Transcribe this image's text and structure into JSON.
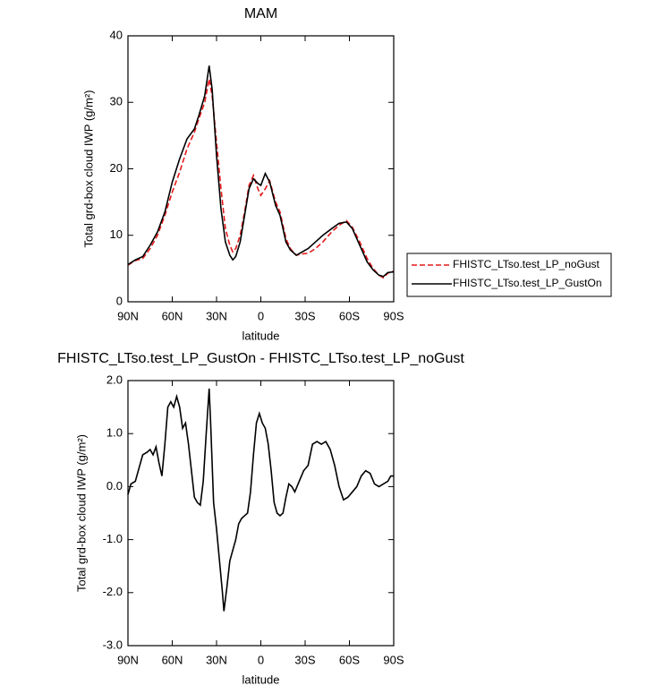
{
  "chart_data": [
    {
      "type": "line",
      "title": "MAM",
      "x_label": "latitude",
      "y_label": "Total grd-box cloud IWP (g/m²)",
      "xlim": [
        90,
        -90
      ],
      "xticks": [
        {
          "value": 90,
          "label": "90N"
        },
        {
          "value": 60,
          "label": "60N"
        },
        {
          "value": 30,
          "label": "30N"
        },
        0,
        {
          "value": -30,
          "label": "30S"
        },
        {
          "value": -60,
          "label": "60S"
        },
        {
          "value": -90,
          "label": "90S"
        }
      ],
      "ylim": [
        0,
        40
      ],
      "yticks": [
        0,
        10,
        20,
        30,
        40
      ],
      "legend": "right",
      "x": [
        90,
        85,
        80,
        75,
        70,
        65,
        60,
        55,
        50,
        45,
        42,
        38,
        35,
        33,
        30,
        27,
        24,
        21,
        19,
        17,
        14,
        11,
        8,
        5,
        2,
        0,
        -3,
        -6,
        -10,
        -13,
        -17,
        -20,
        -24,
        -28,
        -32,
        -37,
        -42,
        -48,
        -53,
        -58,
        -62,
        -67,
        -72,
        -76,
        -80,
        -83,
        -86,
        -90
      ],
      "series": [
        {
          "name": "FHISTC_LTso.test_LP_noGust",
          "color": "#e41a1c",
          "line_style": "dashed",
          "values": [
            5.5,
            6.2,
            6.5,
            8,
            10,
            13,
            16.5,
            19.5,
            23,
            25.5,
            27.5,
            30,
            33.5,
            31,
            24,
            17,
            11,
            8.5,
            7.5,
            8,
            10,
            13.5,
            17.5,
            19,
            17,
            16,
            17,
            18.2,
            15,
            13.5,
            9.5,
            8,
            7,
            7.2,
            7.3,
            8,
            9,
            10.5,
            11.5,
            12.2,
            11.2,
            9,
            6.5,
            5,
            4,
            3.6,
            4.3,
            4.6
          ]
        },
        {
          "name": "FHISTC_LTso.test_LP_GustOn",
          "color": "#000000",
          "line_style": "solid",
          "values": [
            5.6,
            6.3,
            6.8,
            8.5,
            10.5,
            13.5,
            18,
            21.5,
            24.5,
            26,
            28,
            31,
            35.5,
            32,
            22,
            14,
            9,
            7,
            6.3,
            6.8,
            9,
            13,
            17,
            18.5,
            17.8,
            17.5,
            19.3,
            18,
            14.5,
            13,
            9,
            7.8,
            7,
            7.5,
            8,
            9,
            10,
            11,
            11.8,
            12,
            11,
            8.5,
            6,
            4.8,
            4,
            3.8,
            4.4,
            4.5
          ]
        }
      ]
    },
    {
      "type": "line",
      "title": "FHISTC_LTso.test_LP_GustOn - FHISTC_LTso.test_LP_noGust",
      "x_label": "latitude",
      "y_label": "Total grd-box cloud IWP (g/m²)",
      "xlim": [
        90,
        -90
      ],
      "xticks": [
        {
          "value": 90,
          "label": "90N"
        },
        {
          "value": 60,
          "label": "60N"
        },
        {
          "value": 30,
          "label": "30N"
        },
        0,
        {
          "value": -30,
          "label": "30S"
        },
        {
          "value": -60,
          "label": "60S"
        },
        {
          "value": -90,
          "label": "90S"
        }
      ],
      "ylim": [
        -3,
        2
      ],
      "yticks": [
        {
          "value": 2,
          "label": "2.0"
        },
        {
          "value": 1,
          "label": "1.0"
        },
        {
          "value": 0,
          "label": "0.0"
        },
        {
          "value": -1,
          "label": "-1.0"
        },
        {
          "value": -2,
          "label": "-2.0"
        },
        {
          "value": -3,
          "label": "-3.0"
        }
      ],
      "x": [
        90,
        88,
        85,
        82,
        80,
        77,
        75,
        73,
        71,
        69,
        67,
        65,
        63,
        61,
        59,
        57,
        55,
        53,
        51,
        49,
        47,
        45,
        43,
        41,
        39,
        37,
        35,
        34,
        32,
        30,
        28,
        26,
        25,
        23,
        21,
        19,
        17,
        15,
        13,
        11,
        9,
        7,
        5,
        3,
        1,
        -1,
        -3,
        -5,
        -7,
        -9,
        -11,
        -13,
        -15,
        -17,
        -19,
        -21,
        -23,
        -26,
        -29,
        -32,
        -35,
        -38,
        -41,
        -44,
        -47,
        -50,
        -53,
        -56,
        -59,
        -62,
        -65,
        -68,
        -71,
        -74,
        -77,
        -80,
        -83,
        -86,
        -88,
        -90
      ],
      "series": [
        {
          "color": "#000000",
          "line_style": "solid",
          "values": [
            -0.15,
            0.05,
            0.1,
            0.4,
            0.6,
            0.65,
            0.7,
            0.6,
            0.75,
            0.45,
            0.2,
            0.8,
            1.5,
            1.6,
            1.5,
            1.7,
            1.5,
            1.1,
            1.2,
            0.8,
            0.3,
            -0.2,
            -0.3,
            -0.35,
            0.1,
            1.0,
            1.85,
            1.2,
            -0.3,
            -0.8,
            -1.4,
            -2.0,
            -2.35,
            -1.9,
            -1.4,
            -1.2,
            -1.0,
            -0.7,
            -0.6,
            -0.55,
            -0.5,
            -0.1,
            0.6,
            1.2,
            1.38,
            1.2,
            1.1,
            0.8,
            0.3,
            -0.3,
            -0.5,
            -0.55,
            -0.5,
            -0.2,
            0.05,
            0.0,
            -0.1,
            0.1,
            0.3,
            0.4,
            0.8,
            0.85,
            0.8,
            0.85,
            0.7,
            0.4,
            0.0,
            -0.25,
            -0.2,
            -0.1,
            0.0,
            0.2,
            0.3,
            0.25,
            0.05,
            0.0,
            0.05,
            0.1,
            0.2,
            0.2
          ]
        }
      ]
    }
  ]
}
